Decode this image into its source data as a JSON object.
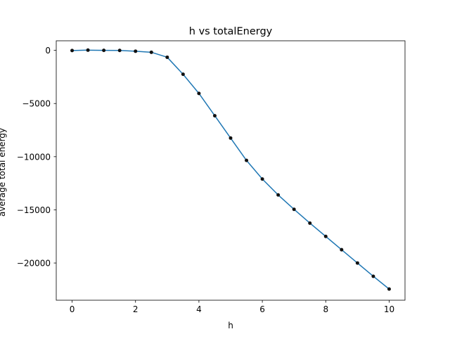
{
  "chart_data": {
    "type": "line",
    "title": "h vs totalEnergy",
    "xlabel": "h",
    "ylabel": "average total energy",
    "xlim": [
      -0.5,
      10.5
    ],
    "ylim": [
      -23500,
      900
    ],
    "xticks": [
      0,
      2,
      4,
      6,
      8,
      10
    ],
    "xtick_labels": [
      "0",
      "2",
      "4",
      "6",
      "8",
      "10"
    ],
    "yticks": [
      0,
      -5000,
      -10000,
      -15000,
      -20000
    ],
    "ytick_labels": [
      "0",
      "−5000",
      "−10000",
      "−15000",
      "−20000"
    ],
    "grid": false,
    "series": [
      {
        "x": [
          0,
          0.5,
          1,
          1.5,
          2,
          2.5,
          3,
          3.5,
          4,
          4.5,
          5,
          5.5,
          6,
          6.5,
          7,
          7.5,
          8,
          8.5,
          9,
          9.5,
          10
        ],
        "y": [
          -20,
          20,
          0,
          -10,
          -80,
          -180,
          -650,
          -2250,
          -4050,
          -6150,
          -8250,
          -10350,
          -12100,
          -13600,
          -14950,
          -16250,
          -17500,
          -18750,
          -20000,
          -21250,
          -22450
        ],
        "line_color": "#1f77b4",
        "marker_color": "#111111"
      }
    ]
  }
}
